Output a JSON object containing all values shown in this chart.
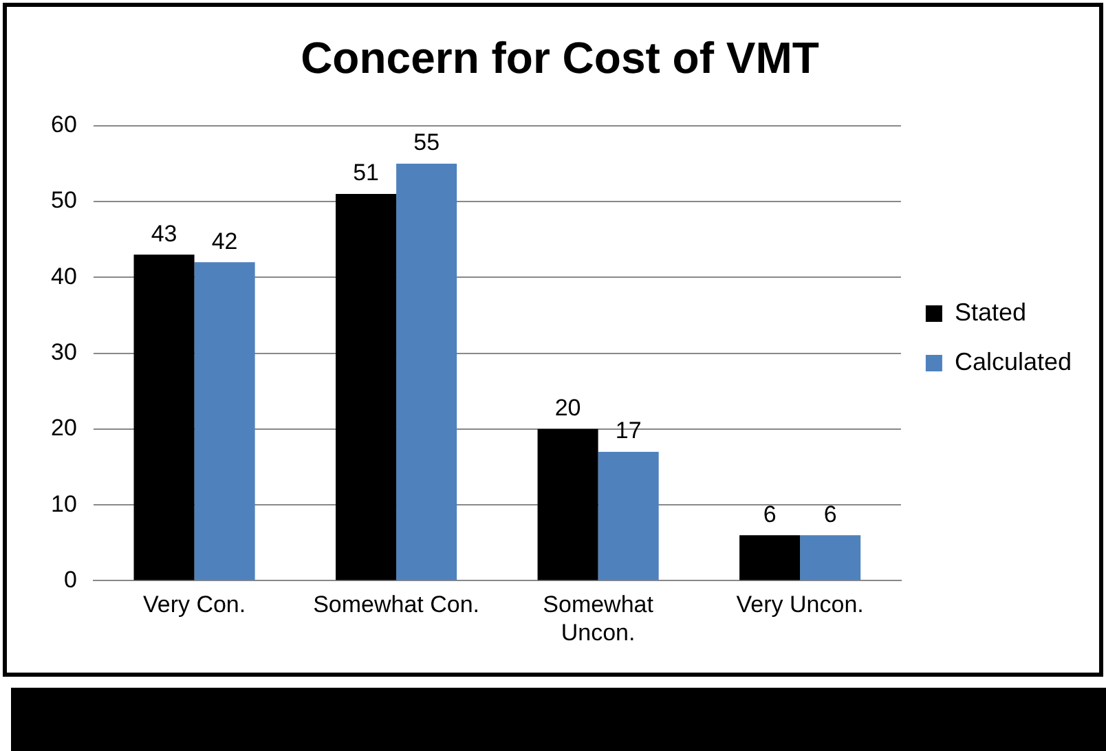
{
  "chart_data": {
    "type": "bar",
    "title": "Concern for Cost of VMT",
    "categories": [
      "Very Con.",
      "Somewhat Con.",
      "Somewhat Uncon.",
      "Very Uncon."
    ],
    "series": [
      {
        "name": "Stated",
        "color": "#000000",
        "values": [
          43,
          51,
          20,
          6
        ]
      },
      {
        "name": "Calculated",
        "color": "#4f81bd",
        "values": [
          42,
          55,
          17,
          6
        ]
      }
    ],
    "ylim": [
      0,
      60
    ],
    "yticks": [
      0,
      10,
      20,
      30,
      40,
      50,
      60
    ],
    "grid": "y",
    "legend": "right",
    "data_labels": true
  }
}
